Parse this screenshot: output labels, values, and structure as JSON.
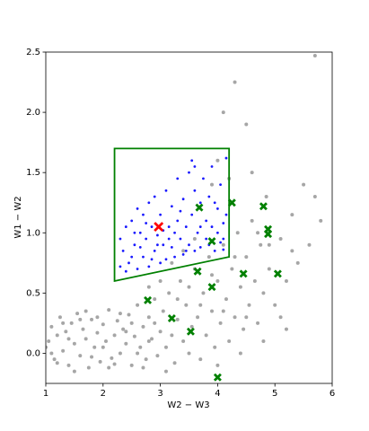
{
  "chart_data": {
    "type": "scatter",
    "x_label": "W2 − W3",
    "y_label": "W1 − W2",
    "xlim": [
      1,
      6
    ],
    "ylim": [
      -0.25,
      2.5
    ],
    "xticks": [
      1,
      2,
      3,
      4,
      5,
      6
    ],
    "yticks": [
      {
        "value": 0,
        "label": "0.0"
      },
      {
        "value": 0.5,
        "label": "0.5"
      },
      {
        "value": 1,
        "label": "1.0"
      },
      {
        "value": 1.5,
        "label": "1.5"
      },
      {
        "value": 2,
        "label": "2.0"
      },
      {
        "value": 2.5,
        "label": "2.5"
      }
    ],
    "grid": false,
    "series": [
      {
        "color": "#808080",
        "marker": "o",
        "x": [
          1.05,
          1.1,
          1.15,
          1.2,
          1.25,
          1.3,
          1.35,
          1.4,
          1.45,
          1.5,
          1.55,
          1.6,
          1.65,
          1.7,
          1.75,
          1.8,
          1.85,
          1.9,
          1.95,
          2.0,
          2.05,
          2.1,
          2.15,
          2.2,
          2.25,
          2.3,
          2.35,
          2.4,
          2.45,
          2.5,
          2.55,
          2.6,
          2.65,
          2.7,
          2.75,
          2.8,
          2.85,
          2.9,
          2.95,
          3.0,
          3.05,
          3.1,
          3.15,
          3.2,
          3.25,
          3.3,
          3.35,
          3.4,
          3.45,
          3.5,
          3.55,
          3.6,
          3.65,
          3.7,
          3.75,
          3.8,
          3.85,
          3.9,
          3.95,
          4.0,
          4.05,
          4.1,
          4.15,
          4.2,
          4.25,
          4.3,
          4.35,
          4.4,
          4.45,
          4.5,
          4.55,
          4.6,
          4.65,
          4.7,
          4.75,
          4.8,
          4.85,
          4.9,
          5.0,
          5.1,
          5.2,
          5.3,
          5.4,
          5.5,
          5.7,
          4.0,
          4.1,
          4.3,
          4.5,
          4.2,
          5.7,
          4.6,
          3.9,
          1.1,
          1.3,
          1.5,
          1.7,
          1.9,
          2.1,
          2.3,
          2.5,
          2.7,
          2.9,
          3.1,
          3.3,
          3.5,
          3.7,
          3.9,
          4.1,
          4.3,
          4.5,
          4.7,
          4.9,
          5.1,
          5.3,
          3.2,
          3.4,
          3.6,
          3.0,
          2.8,
          4.0,
          4.4,
          4.8,
          5.2,
          5.6,
          5.8,
          1.0,
          1.2,
          1.4,
          1.6,
          1.8,
          2.0,
          2.2,
          2.4,
          2.6,
          2.8
        ],
        "values": [
          0.1,
          0.22,
          -0.05,
          0.15,
          0.3,
          0.02,
          0.18,
          -0.1,
          0.25,
          0.08,
          0.33,
          -0.02,
          0.2,
          0.12,
          -0.12,
          0.28,
          0.05,
          0.17,
          -0.07,
          0.24,
          0.1,
          0.36,
          -0.04,
          0.15,
          0.27,
          0.0,
          0.2,
          0.08,
          0.32,
          -0.1,
          0.14,
          0.4,
          0.05,
          0.22,
          -0.05,
          0.3,
          0.12,
          0.45,
          -0.02,
          0.18,
          0.35,
          0.05,
          0.5,
          0.15,
          -0.08,
          0.28,
          0.6,
          0.1,
          0.4,
          0.0,
          0.22,
          0.7,
          0.3,
          -0.05,
          0.5,
          0.15,
          0.8,
          0.35,
          0.05,
          0.6,
          0.25,
          0.9,
          0.45,
          0.1,
          0.7,
          0.3,
          1.0,
          0.55,
          0.2,
          0.8,
          0.4,
          1.1,
          0.6,
          0.25,
          0.9,
          0.5,
          1.3,
          0.7,
          0.4,
          0.95,
          0.6,
          1.15,
          0.75,
          1.4,
          1.3,
          1.6,
          2.0,
          2.25,
          1.9,
          1.45,
          2.47,
          1.5,
          1.4,
          0.0,
          0.25,
          -0.15,
          0.35,
          0.3,
          -0.12,
          0.33,
          0.25,
          -0.12,
          0.25,
          -0.15,
          0.45,
          0.55,
          0.4,
          0.65,
          0.35,
          0.8,
          0.3,
          1.0,
          0.9,
          0.3,
          0.85,
          0.75,
          0.85,
          0.95,
          0.6,
          0.55,
          -0.1,
          0.0,
          0.1,
          0.2,
          0.9,
          1.1,
          0.05,
          -0.08,
          0.12,
          0.28,
          -0.03,
          0.05,
          -0.09,
          0.18,
          0.0,
          0.1
        ]
      },
      {
        "color": "#0000ff",
        "marker": "o",
        "x": [
          2.3,
          2.35,
          2.4,
          2.45,
          2.5,
          2.55,
          2.6,
          2.6,
          2.65,
          2.7,
          2.7,
          2.75,
          2.8,
          2.8,
          2.85,
          2.9,
          2.9,
          2.95,
          3.0,
          3.0,
          3.05,
          3.1,
          3.1,
          3.15,
          3.2,
          3.2,
          3.25,
          3.3,
          3.3,
          3.35,
          3.4,
          3.4,
          3.45,
          3.5,
          3.5,
          3.55,
          3.6,
          3.6,
          3.65,
          3.7,
          3.7,
          3.75,
          3.8,
          3.8,
          3.85,
          3.85,
          3.9,
          3.9,
          3.95,
          4.0,
          4.0,
          4.05,
          4.05,
          4.1,
          4.1,
          4.15,
          4.15,
          3.55,
          3.35,
          2.5,
          2.4,
          2.55,
          2.65,
          2.75,
          2.95,
          3.05,
          3.15,
          3.25,
          3.45,
          3.95,
          4.1,
          3.7,
          2.85,
          2.3,
          3.6
        ],
        "values": [
          0.95,
          0.85,
          1.05,
          0.75,
          1.1,
          0.9,
          0.7,
          1.2,
          1.0,
          0.8,
          1.15,
          0.95,
          0.72,
          1.25,
          1.05,
          0.85,
          1.3,
          0.98,
          0.75,
          1.15,
          0.9,
          1.35,
          0.78,
          1.05,
          0.88,
          1.22,
          0.8,
          1.1,
          1.45,
          0.95,
          0.82,
          1.28,
          1.05,
          0.9,
          1.5,
          1.15,
          0.85,
          1.35,
          1.0,
          0.88,
          1.25,
          1.45,
          0.95,
          1.1,
          0.9,
          1.3,
          1.05,
          1.55,
          0.85,
          1.0,
          1.2,
          0.92,
          1.4,
          1.08,
          0.86,
          1.15,
          1.62,
          1.6,
          1.18,
          0.8,
          0.68,
          1.0,
          0.88,
          1.08,
          0.9,
          1.02,
          0.95,
          1.0,
          0.85,
          1.25,
          0.95,
          1.05,
          0.78,
          0.72,
          1.55
        ]
      },
      {
        "color": "#008000",
        "marker": "x",
        "x": [
          3.68,
          4.25,
          4.8,
          3.9,
          4.88,
          4.88,
          3.65,
          4.45,
          5.05,
          3.9,
          2.78,
          3.2,
          3.53,
          4.0
        ],
        "values": [
          1.21,
          1.25,
          1.22,
          0.93,
          1.03,
          0.99,
          0.68,
          0.66,
          0.66,
          0.55,
          0.44,
          0.29,
          0.18,
          -0.2
        ]
      },
      {
        "color": "#ff0000",
        "marker": "x",
        "x": [
          2.97
        ],
        "values": [
          1.05
        ]
      }
    ],
    "region": {
      "color": "#008000",
      "x": [
        2.2,
        4.2,
        4.2,
        2.2
      ],
      "y": [
        1.7,
        1.7,
        0.8,
        0.6
      ]
    }
  }
}
